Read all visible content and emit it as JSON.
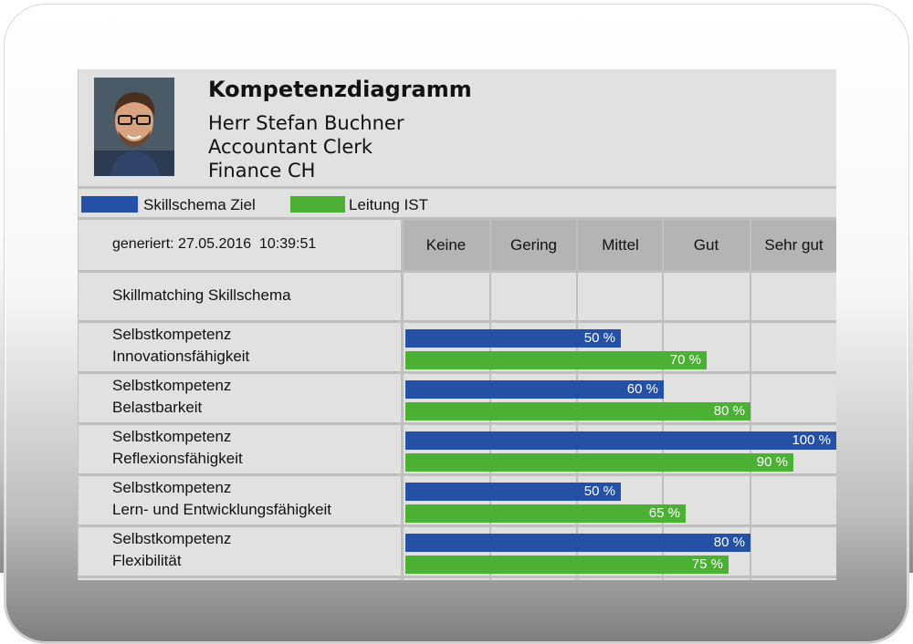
{
  "header": {
    "title": "Kompetenzdiagramm",
    "name": "Herr Stefan Buchner",
    "role": "Accountant Clerk",
    "department": "Finance CH"
  },
  "legend": [
    {
      "label": "Skillschema Ziel",
      "color": "#2450a6"
    },
    {
      "label": "Leitung IST",
      "color": "#4cb035"
    }
  ],
  "generated": "generiert: 27.05.2016  10:39:51",
  "section_label": "Skillmatching Skillschema",
  "chart_data": {
    "type": "bar",
    "orientation": "horizontal",
    "scale_categories": [
      "Keine",
      "Gering",
      "Mittel",
      "Gut",
      "Sehr gut"
    ],
    "xlim": [
      0,
      100
    ],
    "categories": [
      [
        "Selbstkompetenz",
        "Innovationsfähigkeit"
      ],
      [
        "Selbstkompetenz",
        "Belastbarkeit"
      ],
      [
        "Selbstkompetenz",
        "Reflexionsfähigkeit"
      ],
      [
        "Selbstkompetenz",
        "Lern- und Entwicklungsfähigkeit"
      ],
      [
        "Selbstkompetenz",
        "Flexibilität"
      ]
    ],
    "series": [
      {
        "name": "Skillschema Ziel",
        "color": "#2450a6",
        "values": [
          50,
          60,
          100,
          50,
          80
        ],
        "labels": [
          "50 %",
          "60 %",
          "100 %",
          "50 %",
          "80 %"
        ]
      },
      {
        "name": "Leitung IST",
        "color": "#4cb035",
        "values": [
          70,
          80,
          90,
          65,
          75
        ],
        "labels": [
          "70 %",
          "80 %",
          "90 %",
          "65 %",
          "75 %"
        ]
      }
    ]
  }
}
